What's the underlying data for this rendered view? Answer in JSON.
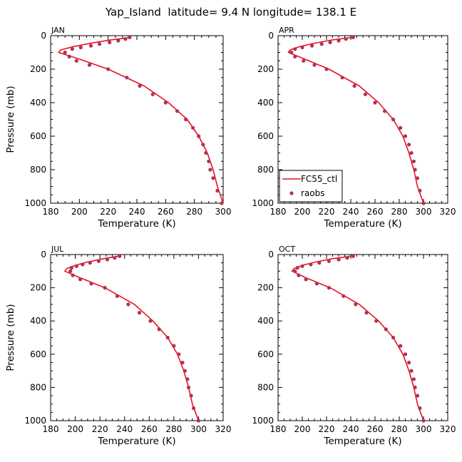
{
  "figure": {
    "title": "Yap_Island  latitude= 9.4 N longitude= 138.1 E",
    "model_color": "#e8141e",
    "obs_color": "#b3305a"
  },
  "legend": {
    "model_label": "FC55_ctl",
    "obs_label": "raobs"
  },
  "chart_data": [
    {
      "type": "line",
      "panel_label": "JAN",
      "xlabel": "Temperature (K)",
      "ylabel": "Pressure (mb)",
      "xlim": [
        180,
        300
      ],
      "xticks": [
        180,
        200,
        220,
        240,
        260,
        280,
        300
      ],
      "ylim": [
        1000,
        0
      ],
      "yticks": [
        0,
        200,
        400,
        600,
        800,
        1000
      ],
      "series": [
        {
          "kind": "line",
          "x": [
            236,
            222,
            208,
            196,
            187,
            185.5,
            200,
            220,
            245,
            262,
            275,
            283,
            289,
            293,
            296,
            300
          ],
          "y": [
            10,
            25,
            45,
            65,
            85,
            100,
            140,
            200,
            300,
            400,
            500,
            600,
            700,
            800,
            900,
            1000
          ]
        },
        {
          "kind": "scatter",
          "x": [
            235,
            232,
            227,
            221,
            214,
            208,
            201,
            195,
            190,
            193,
            198,
            207,
            220,
            233,
            242,
            251,
            260,
            268,
            274,
            279,
            283,
            286,
            288,
            290,
            291,
            293,
            296,
            299
          ],
          "y": [
            10,
            20,
            30,
            40,
            50,
            60,
            70,
            80,
            100,
            125,
            150,
            175,
            200,
            250,
            300,
            350,
            400,
            450,
            500,
            550,
            600,
            650,
            700,
            750,
            800,
            850,
            925,
            1000
          ]
        }
      ]
    },
    {
      "type": "line",
      "panel_label": "APR",
      "xlabel": "Temperature (K)",
      "ylabel": "",
      "xlim": [
        180,
        320
      ],
      "xticks": [
        180,
        200,
        220,
        240,
        260,
        280,
        300,
        320
      ],
      "ylim": [
        1000,
        0
      ],
      "yticks": [
        0,
        200,
        400,
        600,
        800,
        1000
      ],
      "series": [
        {
          "kind": "line",
          "x": [
            241,
            225,
            210,
            198,
            190,
            188.5,
            202,
            222,
            247,
            263,
            275,
            283,
            288,
            292,
            295,
            300
          ],
          "y": [
            10,
            25,
            45,
            65,
            85,
            100,
            140,
            200,
            300,
            400,
            500,
            600,
            700,
            800,
            900,
            1000
          ]
        },
        {
          "kind": "scatter",
          "x": [
            242,
            236,
            230,
            223,
            216,
            208,
            200,
            194,
            191,
            194,
            201,
            210,
            220,
            233,
            243,
            252,
            260,
            268,
            275,
            281,
            285,
            288,
            290,
            292,
            293,
            295,
            297,
            300
          ],
          "y": [
            10,
            20,
            30,
            40,
            50,
            60,
            70,
            80,
            100,
            125,
            150,
            175,
            200,
            250,
            300,
            350,
            400,
            450,
            500,
            550,
            600,
            650,
            700,
            750,
            800,
            850,
            925,
            1000
          ]
        }
      ]
    },
    {
      "type": "line",
      "panel_label": "JUL",
      "xlabel": "Temperature (K)",
      "ylabel": "Pressure (mb)",
      "xlim": [
        180,
        320
      ],
      "xticks": [
        180,
        200,
        220,
        240,
        260,
        280,
        300,
        320
      ],
      "ylim": [
        1000,
        0
      ],
      "yticks": [
        0,
        200,
        400,
        600,
        800,
        1000
      ],
      "series": [
        {
          "kind": "line",
          "x": [
            235,
            223,
            210,
            200,
            193,
            191.5,
            204,
            224,
            248,
            263,
            275,
            283,
            288,
            292,
            295,
            300
          ],
          "y": [
            10,
            25,
            45,
            65,
            85,
            100,
            140,
            200,
            300,
            400,
            500,
            600,
            700,
            800,
            900,
            1000
          ]
        },
        {
          "kind": "scatter",
          "x": [
            236,
            232,
            226,
            219,
            212,
            206,
            201,
            197,
            196,
            198,
            204,
            213,
            224,
            234,
            243,
            252,
            261,
            268,
            275,
            280,
            284,
            287,
            289,
            291,
            292,
            294,
            296,
            300
          ],
          "y": [
            10,
            20,
            30,
            40,
            50,
            60,
            70,
            80,
            100,
            125,
            150,
            175,
            200,
            250,
            300,
            350,
            400,
            450,
            500,
            550,
            600,
            650,
            700,
            750,
            800,
            850,
            925,
            1000
          ]
        }
      ]
    },
    {
      "type": "line",
      "panel_label": "OCT",
      "xlabel": "Temperature (K)",
      "ylabel": "",
      "xlim": [
        180,
        320
      ],
      "xticks": [
        180,
        200,
        220,
        240,
        260,
        280,
        300,
        320
      ],
      "ylim": [
        1000,
        0
      ],
      "yticks": [
        0,
        200,
        400,
        600,
        800,
        1000
      ],
      "series": [
        {
          "kind": "line",
          "x": [
            240,
            225,
            211,
            200,
            193,
            191.5,
            203,
            223,
            247,
            263,
            275,
            283,
            288,
            292,
            295,
            300
          ],
          "y": [
            10,
            25,
            45,
            65,
            85,
            100,
            140,
            200,
            300,
            400,
            500,
            600,
            700,
            800,
            900,
            1000
          ]
        },
        {
          "kind": "scatter",
          "x": [
            242,
            237,
            230,
            222,
            214,
            207,
            200,
            196,
            194,
            197,
            203,
            212,
            222,
            234,
            244,
            253,
            261,
            269,
            275,
            281,
            285,
            288,
            290,
            292,
            293,
            295,
            297,
            300
          ],
          "y": [
            10,
            20,
            30,
            40,
            50,
            60,
            70,
            80,
            100,
            125,
            150,
            175,
            200,
            250,
            300,
            350,
            400,
            450,
            500,
            550,
            600,
            650,
            700,
            750,
            800,
            850,
            925,
            1000
          ]
        }
      ]
    }
  ]
}
